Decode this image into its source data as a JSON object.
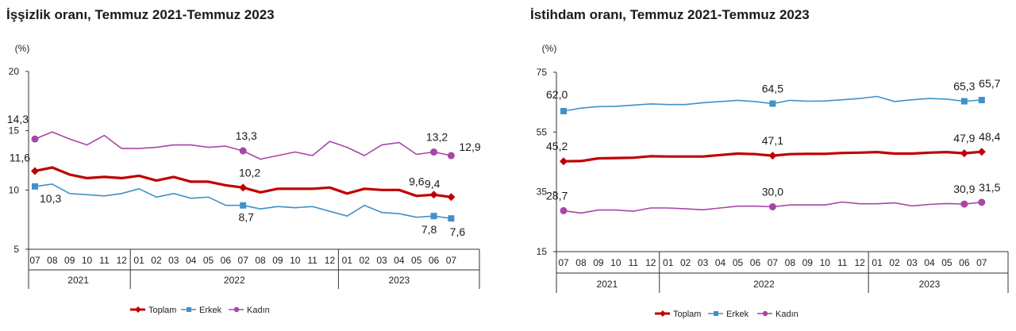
{
  "chart_data": [
    {
      "type": "line",
      "title": "İşşizlik oranı, Temmuz 2021-Temmuz 2023",
      "ylabel": "(%)",
      "ylim": [
        5,
        20
      ],
      "yticks": [
        "5",
        "10",
        "15",
        "20"
      ],
      "categories": [
        "07",
        "08",
        "09",
        "10",
        "11",
        "12",
        "01",
        "02",
        "03",
        "04",
        "05",
        "06",
        "07",
        "08",
        "09",
        "10",
        "11",
        "12",
        "01",
        "02",
        "03",
        "04",
        "05",
        "06",
        "07"
      ],
      "years": [
        {
          "label": "2021",
          "start": 0,
          "end": 5
        },
        {
          "label": "2022",
          "start": 6,
          "end": 17
        },
        {
          "label": "2023",
          "start": 18,
          "end": 24
        }
      ],
      "series": [
        {
          "name": "Toplam",
          "color": "#c00000",
          "values": [
            11.6,
            11.9,
            11.3,
            11.0,
            11.1,
            11.0,
            11.2,
            10.8,
            11.1,
            10.7,
            10.7,
            10.4,
            10.2,
            9.8,
            10.1,
            10.1,
            10.1,
            10.2,
            9.7,
            10.1,
            10.0,
            10.0,
            9.5,
            9.6,
            9.4
          ],
          "labels": [
            {
              "i": 0,
              "text": "11,6"
            },
            {
              "i": 12,
              "text": "10,2"
            },
            {
              "i": 23,
              "text": "9,6"
            },
            {
              "i": 24,
              "text": "9,4"
            }
          ]
        },
        {
          "name": "Erkek",
          "color": "#4191c8",
          "values": [
            10.3,
            10.5,
            9.7,
            9.6,
            9.5,
            9.7,
            10.1,
            9.4,
            9.7,
            9.3,
            9.4,
            8.7,
            8.7,
            8.4,
            8.6,
            8.5,
            8.6,
            8.2,
            7.8,
            8.7,
            8.1,
            8.0,
            7.7,
            7.8,
            7.6
          ],
          "labels": [
            {
              "i": 0,
              "text": "10,3"
            },
            {
              "i": 12,
              "text": "8,7"
            },
            {
              "i": 23,
              "text": "7,8"
            },
            {
              "i": 24,
              "text": "7,6"
            }
          ]
        },
        {
          "name": "Kadın",
          "color": "#a646a6",
          "values": [
            14.3,
            14.9,
            14.3,
            13.8,
            14.6,
            13.5,
            13.5,
            13.6,
            13.8,
            13.8,
            13.6,
            13.7,
            13.3,
            12.6,
            12.9,
            13.2,
            12.9,
            14.1,
            13.6,
            12.9,
            13.8,
            14.0,
            13.0,
            13.2,
            12.9
          ],
          "labels": [
            {
              "i": 0,
              "text": "14,3"
            },
            {
              "i": 12,
              "text": "13,3"
            },
            {
              "i": 23,
              "text": "13,2"
            },
            {
              "i": 24,
              "text": "12,9"
            }
          ]
        }
      ],
      "legend": [
        "Toplam",
        "Erkek",
        "Kadın"
      ]
    },
    {
      "type": "line",
      "title": "İstihdam oranı, Temmuz 2021-Temmuz 2023",
      "ylabel": "(%)",
      "ylim": [
        15,
        75
      ],
      "yticks": [
        "15",
        "35",
        "55",
        "75"
      ],
      "categories": [
        "07",
        "08",
        "09",
        "10",
        "11",
        "12",
        "01",
        "02",
        "03",
        "04",
        "05",
        "06",
        "07",
        "08",
        "09",
        "10",
        "11",
        "12",
        "01",
        "02",
        "03",
        "04",
        "05",
        "06",
        "07"
      ],
      "years": [
        {
          "label": "2021",
          "start": 0,
          "end": 5
        },
        {
          "label": "2022",
          "start": 6,
          "end": 17
        },
        {
          "label": "2023",
          "start": 18,
          "end": 24
        }
      ],
      "series": [
        {
          "name": "Toplam",
          "color": "#c00000",
          "values": [
            45.2,
            45.3,
            46.2,
            46.3,
            46.4,
            46.9,
            46.8,
            46.8,
            46.8,
            47.3,
            47.8,
            47.6,
            47.1,
            47.6,
            47.7,
            47.7,
            48.0,
            48.1,
            48.3,
            47.8,
            47.8,
            48.1,
            48.3,
            47.9,
            48.4
          ],
          "labels": [
            {
              "i": 0,
              "text": "45,2"
            },
            {
              "i": 12,
              "text": "47,1"
            },
            {
              "i": 23,
              "text": "47,9"
            },
            {
              "i": 24,
              "text": "48,4"
            }
          ]
        },
        {
          "name": "Erkek",
          "color": "#4191c8",
          "values": [
            62.0,
            63.0,
            63.5,
            63.6,
            64.0,
            64.4,
            64.2,
            64.2,
            64.8,
            65.2,
            65.6,
            65.2,
            64.5,
            65.6,
            65.3,
            65.4,
            65.8,
            66.2,
            66.9,
            65.2,
            65.8,
            66.2,
            66.0,
            65.3,
            65.7
          ],
          "labels": [
            {
              "i": 0,
              "text": "62,0"
            },
            {
              "i": 12,
              "text": "64,5"
            },
            {
              "i": 23,
              "text": "65,3"
            },
            {
              "i": 24,
              "text": "65,7"
            }
          ]
        },
        {
          "name": "Kadın",
          "color": "#a646a6",
          "values": [
            28.7,
            27.9,
            28.9,
            28.9,
            28.5,
            29.6,
            29.6,
            29.3,
            29.0,
            29.6,
            30.2,
            30.2,
            30.0,
            30.6,
            30.6,
            30.6,
            31.6,
            31.0,
            31.0,
            31.3,
            30.3,
            30.8,
            31.1,
            30.9,
            31.5
          ],
          "labels": [
            {
              "i": 0,
              "text": "28,7"
            },
            {
              "i": 12,
              "text": "30,0"
            },
            {
              "i": 23,
              "text": "30,9"
            },
            {
              "i": 24,
              "text": "31,5"
            }
          ]
        }
      ],
      "legend": [
        "Toplam",
        "Erkek",
        "Kadın"
      ]
    }
  ]
}
